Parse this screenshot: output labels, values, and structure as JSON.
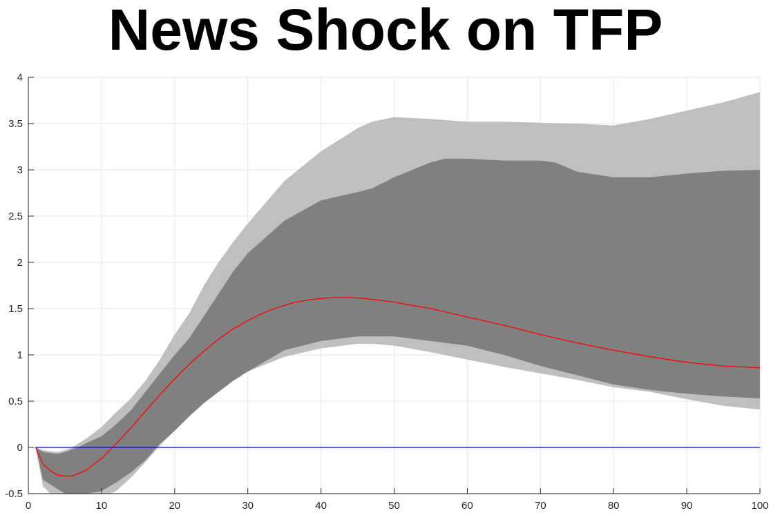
{
  "chart_data": {
    "type": "area",
    "title": "News Shock on TFP",
    "xlabel": "",
    "ylabel": "",
    "xlim": [
      0,
      100
    ],
    "ylim": [
      -0.5,
      4
    ],
    "xticks": [
      0,
      10,
      20,
      30,
      40,
      50,
      60,
      70,
      80,
      90,
      100
    ],
    "yticks": [
      -0.5,
      0,
      0.5,
      1,
      1.5,
      2,
      2.5,
      3,
      3.5,
      4
    ],
    "xtick_labels": [
      "0",
      "10",
      "20",
      "30",
      "40",
      "50",
      "60",
      "70",
      "80",
      "90",
      "100"
    ],
    "ytick_labels": [
      "-0.5",
      "0",
      "0.5",
      "1",
      "1.5",
      "2",
      "2.5",
      "3",
      "3.5",
      "4"
    ],
    "grid": true,
    "colors": {
      "outer_band": "#bfbfbf",
      "inner_band": "#808080",
      "median_line": "#ff0000",
      "zero_line": "#0000ff",
      "grid": "#e6e6e6",
      "axis": "#262626"
    },
    "series": [
      {
        "role": "outer-band",
        "x": [
          1,
          2,
          3,
          4,
          5,
          6,
          7,
          8,
          10,
          12,
          14,
          16,
          18,
          20,
          22,
          24,
          26,
          28,
          30,
          35,
          40,
          45,
          47,
          50,
          55,
          60,
          65,
          70,
          75,
          80,
          85,
          90,
          95,
          100
        ],
        "upper": [
          0,
          -0.03,
          -0.04,
          -0.05,
          -0.03,
          0,
          0.05,
          0.1,
          0.22,
          0.38,
          0.53,
          0.72,
          0.95,
          1.22,
          1.45,
          1.75,
          2.0,
          2.22,
          2.42,
          2.88,
          3.2,
          3.45,
          3.52,
          3.57,
          3.55,
          3.52,
          3.52,
          3.51,
          3.5,
          3.48,
          3.55,
          3.64,
          3.73,
          3.84
        ],
        "lower": [
          0,
          -0.42,
          -0.5,
          -0.55,
          -0.62,
          -0.65,
          -0.63,
          -0.6,
          -0.55,
          -0.47,
          -0.33,
          -0.16,
          0.02,
          0.18,
          0.33,
          0.48,
          0.6,
          0.72,
          0.82,
          0.98,
          1.07,
          1.12,
          1.12,
          1.1,
          1.03,
          0.95,
          0.87,
          0.8,
          0.73,
          0.65,
          0.6,
          0.52,
          0.45,
          0.41
        ]
      },
      {
        "role": "inner-band",
        "x": [
          1,
          2,
          3,
          4,
          5,
          6,
          7,
          8,
          10,
          12,
          14,
          16,
          18,
          20,
          22,
          24,
          26,
          28,
          30,
          35,
          40,
          45,
          47,
          50,
          55,
          57,
          60,
          65,
          70,
          72,
          75,
          80,
          85,
          90,
          95,
          100
        ],
        "upper": [
          0,
          -0.05,
          -0.06,
          -0.07,
          -0.05,
          -0.02,
          0.01,
          0.05,
          0.12,
          0.25,
          0.4,
          0.6,
          0.8,
          1.0,
          1.18,
          1.42,
          1.66,
          1.9,
          2.1,
          2.45,
          2.67,
          2.76,
          2.8,
          2.92,
          3.08,
          3.12,
          3.12,
          3.1,
          3.1,
          3.08,
          2.98,
          2.92,
          2.92,
          2.96,
          2.99,
          3.0
        ],
        "lower": [
          0,
          -0.35,
          -0.4,
          -0.45,
          -0.5,
          -0.52,
          -0.52,
          -0.5,
          -0.47,
          -0.38,
          -0.27,
          -0.14,
          0.04,
          0.18,
          0.34,
          0.48,
          0.6,
          0.72,
          0.82,
          1.05,
          1.15,
          1.2,
          1.2,
          1.2,
          1.15,
          1.13,
          1.1,
          1.0,
          0.88,
          0.84,
          0.78,
          0.68,
          0.62,
          0.58,
          0.55,
          0.53
        ]
      },
      {
        "role": "median",
        "x": [
          1,
          2,
          3,
          4,
          5,
          6,
          7,
          8,
          10,
          12,
          14,
          16,
          18,
          20,
          22,
          24,
          26,
          28,
          30,
          32,
          34,
          36,
          38,
          40,
          42,
          44,
          46,
          48,
          50,
          55,
          60,
          65,
          70,
          75,
          80,
          85,
          90,
          95,
          100
        ],
        "y": [
          0,
          -0.18,
          -0.25,
          -0.3,
          -0.31,
          -0.31,
          -0.28,
          -0.24,
          -0.12,
          0.04,
          0.21,
          0.39,
          0.57,
          0.74,
          0.9,
          1.04,
          1.17,
          1.28,
          1.37,
          1.45,
          1.51,
          1.56,
          1.59,
          1.61,
          1.62,
          1.62,
          1.61,
          1.59,
          1.57,
          1.5,
          1.41,
          1.32,
          1.22,
          1.13,
          1.05,
          0.98,
          0.92,
          0.88,
          0.86
        ]
      },
      {
        "role": "zero-line",
        "x": [
          1,
          100
        ],
        "y": [
          0,
          0
        ]
      }
    ]
  }
}
